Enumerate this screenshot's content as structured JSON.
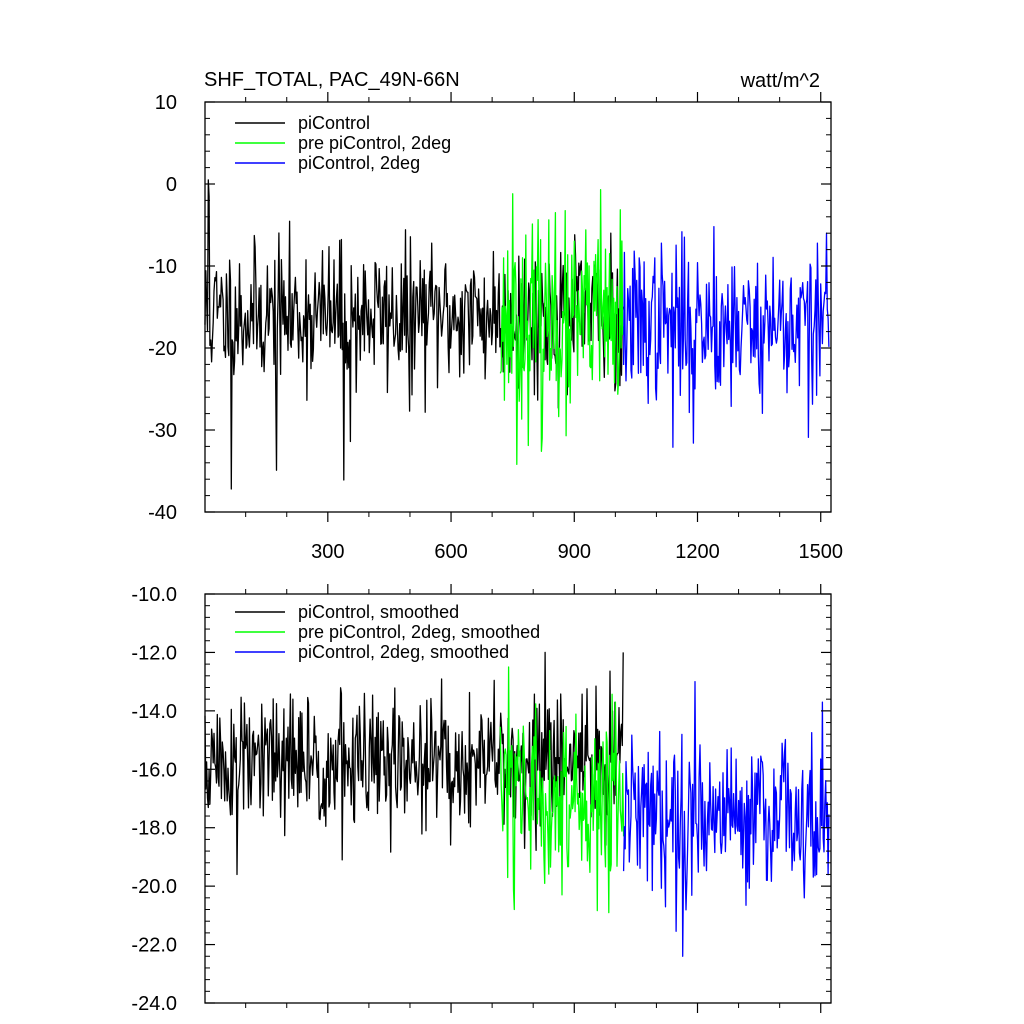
{
  "title_left": "SHF_TOTAL, PAC_49N-66N",
  "title_right": "watt/m^2",
  "colors": {
    "black": "#000000",
    "green": "#00ff00",
    "blue": "#0000ff"
  },
  "chart_data": [
    {
      "type": "line",
      "xlim": [
        1,
        1525
      ],
      "ylim": [
        -40,
        10
      ],
      "x_ticks": [
        300,
        600,
        900,
        1200,
        1500
      ],
      "x_tick_labels": [
        "300",
        "600",
        "900",
        "1200",
        "1500"
      ],
      "y_ticks": [
        -40,
        -30,
        -20,
        -10,
        0,
        10
      ],
      "y_tick_labels": [
        "-40",
        "-30",
        "-20",
        "-10",
        "0",
        "10"
      ],
      "legend_position": "top-left",
      "series": [
        {
          "name": "piControl",
          "color": "#000000",
          "x_range": [
            1,
            1020
          ],
          "mean": -16,
          "spread": 4.2,
          "seed": 11,
          "extremes": [
            [
              10,
              0.5
            ],
            [
              12,
              -1.5
            ],
            [
              65,
              -37.2
            ],
            [
              175,
              -34.9
            ],
            [
              340,
              -36.1
            ],
            [
              355,
              -31.4
            ],
            [
              500,
              -27.7
            ],
            [
              990,
              -6.0
            ]
          ]
        },
        {
          "name": "pre piControl, 2deg",
          "color": "#00ff00",
          "x_range": [
            720,
            1020
          ],
          "mean": -17,
          "spread": 5.5,
          "seed": 23,
          "extremes": [
            [
              760,
              -34.2
            ],
            [
              750,
              -1.2
            ],
            [
              820,
              -32.6
            ],
            [
              880,
              -30.7
            ],
            [
              965,
              -0.7
            ],
            [
              855,
              -3.5
            ]
          ]
        },
        {
          "name": "piControl, 2deg",
          "color": "#0000ff",
          "x_range": [
            1020,
            1520
          ],
          "mean": -17,
          "spread": 4.6,
          "seed": 37,
          "extremes": [
            [
              1140,
              -32.1
            ],
            [
              1190,
              -31.6
            ],
            [
              1470,
              -30.9
            ],
            [
              1515,
              -6.0
            ],
            [
              1240,
              -5.2
            ]
          ]
        }
      ]
    },
    {
      "type": "line",
      "xlim": [
        1,
        1525
      ],
      "ylim": [
        -24,
        -10
      ],
      "x_ticks": [
        300,
        600,
        900,
        1200,
        1500
      ],
      "y_ticks": [
        -24,
        -22,
        -20,
        -18,
        -16,
        -14,
        -12,
        -10
      ],
      "y_tick_labels": [
        "-24.0",
        "-22.0",
        "-20.0",
        "-18.0",
        "-16.0",
        "-14.0",
        "-12.0",
        "-10.0"
      ],
      "legend_position": "top-left",
      "series": [
        {
          "name": "piControl, smoothed",
          "color": "#000000",
          "x_range": [
            1,
            1020
          ],
          "mean": -15.8,
          "spread": 1.2,
          "seed": 51,
          "extremes": [
            [
              80,
              -19.6
            ],
            [
              335,
              -19.1
            ],
            [
              830,
              -12.0
            ],
            [
              1175,
              -12.0
            ]
          ]
        },
        {
          "name": "pre piControl, 2deg, smoothed",
          "color": "#00ff00",
          "x_range": [
            720,
            1020
          ],
          "mean": -17,
          "spread": 1.5,
          "seed": 63,
          "extremes": [
            [
              755,
              -20.8
            ],
            [
              740,
              -12.5
            ],
            [
              870,
              -20.3
            ],
            [
              1000,
              -13.7
            ]
          ]
        },
        {
          "name": "piControl, 2deg, smoothed",
          "color": "#0000ff",
          "x_range": [
            1020,
            1520
          ],
          "mean": -17.5,
          "spread": 1.3,
          "seed": 79,
          "extremes": [
            [
              1165,
              -22.4
            ],
            [
              1505,
              -13.7
            ],
            [
              1195,
              -13.0
            ],
            [
              1460,
              -20.4
            ]
          ]
        }
      ]
    }
  ]
}
